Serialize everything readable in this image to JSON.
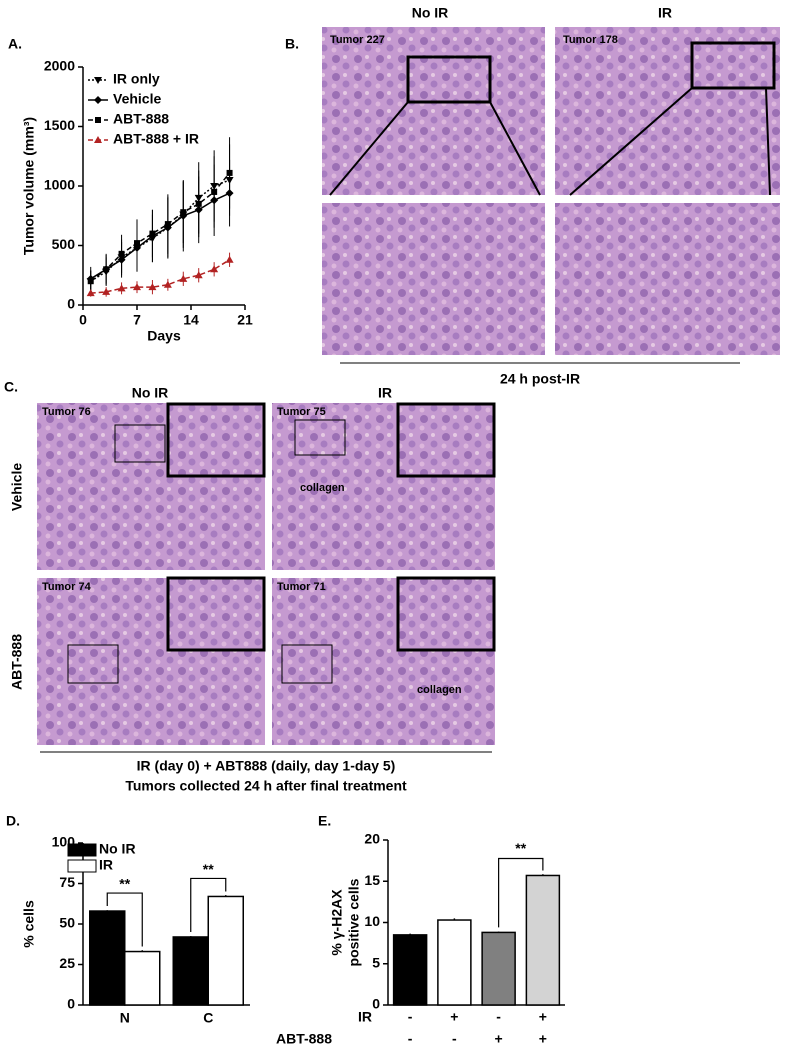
{
  "chart_data": [
    {
      "type": "line",
      "panel_label": "A.",
      "xlabel": "Days",
      "ylabel": "Tumor volume (mm³)",
      "x": [
        1,
        3,
        5,
        7,
        9,
        11,
        13,
        15,
        17,
        19
      ],
      "xlim": [
        0,
        21
      ],
      "xticks": [
        0,
        7,
        14,
        21
      ],
      "ylim": [
        0,
        2000
      ],
      "yticks": [
        0,
        500,
        1000,
        1500,
        2000
      ],
      "series": [
        {
          "name": "IR only",
          "color": "#000000",
          "dash": "dotted",
          "marker": "triangle-down",
          "values": [
            200,
            280,
            400,
            480,
            560,
            650,
            760,
            900,
            1000,
            1050
          ],
          "errors": [
            90,
            120,
            150,
            200,
            200,
            250,
            280,
            300,
            300,
            300
          ]
        },
        {
          "name": "Vehicle",
          "color": "#000000",
          "dash": "solid",
          "marker": "diamond",
          "values": [
            220,
            300,
            380,
            480,
            580,
            650,
            750,
            800,
            880,
            940
          ],
          "errors": [
            100,
            130,
            150,
            200,
            220,
            260,
            300,
            280,
            300,
            280
          ]
        },
        {
          "name": "ABT-888",
          "color": "#000000",
          "dash": "dashed",
          "marker": "square",
          "values": [
            200,
            300,
            430,
            520,
            600,
            680,
            780,
            850,
            950,
            1110
          ],
          "errors": [
            90,
            120,
            160,
            200,
            200,
            250,
            260,
            280,
            300,
            300
          ]
        },
        {
          "name": "ABT-888 + IR",
          "color": "#b22222",
          "dash": "dashed",
          "marker": "triangle-up",
          "values": [
            100,
            110,
            140,
            150,
            150,
            170,
            220,
            250,
            300,
            380
          ],
          "errors": [
            30,
            40,
            50,
            50,
            60,
            50,
            60,
            60,
            60,
            60
          ]
        }
      ]
    },
    {
      "type": "bar",
      "panel_label": "D.",
      "ylabel": "% cells",
      "categories": [
        "N",
        "C"
      ],
      "ylim": [
        0,
        100
      ],
      "yticks": [
        0,
        25,
        50,
        75,
        100
      ],
      "series": [
        {
          "name": "No IR",
          "color": "#000000",
          "values": [
            58,
            42
          ],
          "errors": [
            0.5,
            0.5
          ]
        },
        {
          "name": "IR",
          "color": "#ffffff",
          "values": [
            33,
            67
          ],
          "errors": [
            0.8,
            0.8
          ]
        }
      ],
      "annotations": [
        "**",
        "**"
      ]
    },
    {
      "type": "bar",
      "panel_label": "E.",
      "ylabel": [
        "% γ-H2AX",
        "positive cells"
      ],
      "categories": [
        null,
        null,
        null,
        null
      ],
      "ylim": [
        0,
        20
      ],
      "yticks": [
        0,
        5,
        10,
        15,
        20
      ],
      "values": [
        8.5,
        10.3,
        8.8,
        15.7
      ],
      "errors": [
        0.15,
        0.2,
        0.1,
        0.15
      ],
      "colors": [
        "#000000",
        "#ffffff",
        "#808080",
        "#d3d3d3"
      ],
      "conditions": [
        {
          "name": "IR",
          "levels": [
            "-",
            "+",
            "-",
            "+"
          ]
        },
        {
          "name": "ABT-888",
          "levels": [
            "-",
            "-",
            "+",
            "+"
          ]
        }
      ],
      "annotations": [
        "**"
      ]
    }
  ],
  "histology": {
    "B": {
      "panel_label": "B.",
      "columns": [
        "No IR",
        "IR"
      ],
      "tumors": [
        "Tumor 227",
        "Tumor 178"
      ],
      "caption": "24 h post-IR"
    },
    "C": {
      "panel_label": "C.",
      "columns": [
        "No IR",
        "IR"
      ],
      "rows": [
        "Vehicle",
        "ABT-888"
      ],
      "tumors": [
        "Tumor 76",
        "Tumor 75",
        "Tumor 74",
        "Tumor 71"
      ],
      "notes": [
        "collagen",
        "collagen"
      ],
      "caption": [
        "IR (day 0) + ABT888 (daily, day 1-day 5)",
        "Tumors collected 24 h after final treatment"
      ]
    }
  }
}
